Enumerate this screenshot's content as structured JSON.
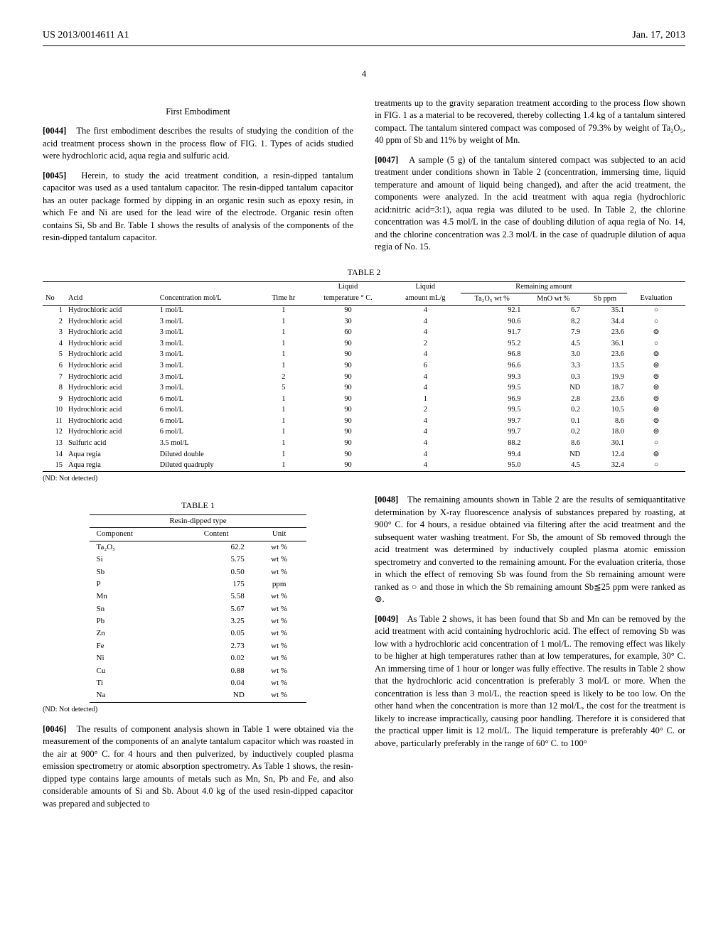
{
  "header": {
    "left": "US 2013/0014611 A1",
    "right": "Jan. 17, 2013",
    "page": "4"
  },
  "sectionTitle": "First Embodiment",
  "paragraphs": {
    "p44": "The first embodiment describes the results of studying the condition of the acid treatment process shown in the process flow of FIG. 1. Types of acids studied were hydrochloric acid, aqua regia and sulfuric acid.",
    "p45": "Herein, to study the acid treatment condition, a resin-dipped tantalum capacitor was used as a used tantalum capacitor. The resin-dipped tantalum capacitor has an outer package formed by dipping in an organic resin such as epoxy resin, in which Fe and Ni are used for the lead wire of the electrode. Organic resin often contains Si, Sb and Br. Table 1 shows the results of analysis of the components of the resin-dipped tantalum capacitor.",
    "p46_a": "treatments up to the gravity separation treatment according to the process flow shown in FIG. 1 as a material to be recovered, thereby collecting 1.4 kg of a tantalum sintered compact. The tantalum sintered compact was composed of 79.3% by weight of Ta₂O₅, 40 ppm of Sb and 11% by weight of Mn.",
    "p47": "A sample (5 g) of the tantalum sintered compact was subjected to an acid treatment under conditions shown in Table 2 (concentration, immersing time, liquid temperature and amount of liquid being changed), and after the acid treatment, the components were analyzed. In the acid treatment with aqua regia (hydrochloric acid:nitric acid=3:1), aqua regia was diluted to be used. In Table 2, the chlorine concentration was 4.5 mol/L in the case of doubling dilution of aqua regia of No. 14, and the chlorine concentration was 2.3 mol/L in the case of quadruple dilution of aqua regia of No. 15.",
    "p46_b": "The results of component analysis shown in Table 1 were obtained via the measurement of the components of an analyte tantalum capacitor which was roasted in the air at 900° C. for 4 hours and then pulverized, by inductively coupled plasma emission spectrometry or atomic absorption spectrometry. As Table 1 shows, the resin-dipped type contains large amounts of metals such as Mn, Sn, Pb and Fe, and also considerable amounts of Si and Sb. About 4.0 kg of the used resin-dipped capacitor was prepared and subjected to",
    "p48": "The remaining amounts shown in Table 2 are the results of semiquantitative determination by X-ray fluorescence analysis of substances prepared by roasting, at 900° C. for 4 hours, a residue obtained via filtering after the acid treatment and the subsequent water washing treatment. For Sb, the amount of Sb removed through the acid treatment was determined by inductively coupled plasma atomic emission spectrometry and converted to the remaining amount. For the evaluation criteria, those in which the effect of removing Sb was found from the Sb remaining amount were ranked as ○ and those in which the Sb remaining amount Sb≦25 ppm were ranked as ⊚.",
    "p49": "As Table 2 shows, it has been found that Sb and Mn can be removed by the acid treatment with acid containing hydrochloric acid. The effect of removing Sb was low with a hydrochloric acid concentration of 1 mol/L. The removing effect was likely to be higher at high temperatures rather than at low temperatures, for example, 30° C. An immersing time of 1 hour or longer was fully effective. The results in Table 2 show that the hydrochloric acid concentration is preferably 3 mol/L or more. When the concentration is less than 3 mol/L, the reaction speed is likely to be too low. On the other hand when the concentration is more than 12 mol/L, the cost for the treatment is likely to increase impractically, causing poor handling. Therefore it is considered that the practical upper limit is 12 mol/L. The liquid temperature is preferably 40° C. or above, particularly preferably in the range of 60° C. to 100°"
  },
  "table1": {
    "caption": "TABLE 1",
    "sub": "Resin-dipped type",
    "headers": [
      "Component",
      "Content",
      "Unit"
    ],
    "rows": [
      [
        "Ta₂O₅",
        "62.2",
        "wt %"
      ],
      [
        "Si",
        "5.75",
        "wt %"
      ],
      [
        "Sb",
        "0.50",
        "wt %"
      ],
      [
        "P",
        "175",
        "ppm"
      ],
      [
        "Mn",
        "5.58",
        "wt %"
      ],
      [
        "Sn",
        "5.67",
        "wt %"
      ],
      [
        "Pb",
        "3.25",
        "wt %"
      ],
      [
        "Zn",
        "0.05",
        "wt %"
      ],
      [
        "Fe",
        "2.73",
        "wt %"
      ],
      [
        "Ni",
        "0.02",
        "wt %"
      ],
      [
        "Cu",
        "0.88",
        "wt %"
      ],
      [
        "Ti",
        "0.04",
        "wt %"
      ],
      [
        "Na",
        "ND",
        "wt %"
      ]
    ],
    "note": "(ND: Not detected)"
  },
  "table2": {
    "caption": "TABLE 2",
    "groupHeaders": [
      "",
      "",
      "",
      "",
      "Liquid",
      "Liquid",
      "Remaining amount",
      "",
      "",
      ""
    ],
    "headers": [
      "No",
      "Acid",
      "Concentration mol/L",
      "Time hr",
      "temperature ° C.",
      "amount mL/g",
      "Ta₂O₅ wt %",
      "MnO wt %",
      "Sb ppm",
      "Evaluation"
    ],
    "rows": [
      [
        "1",
        "Hydrochloric acid",
        "1 mol/L",
        "1",
        "90",
        "4",
        "92.1",
        "6.7",
        "35.1",
        "○"
      ],
      [
        "2",
        "Hydrochloric acid",
        "3 mol/L",
        "1",
        "30",
        "4",
        "90.6",
        "8.2",
        "34.4",
        "○"
      ],
      [
        "3",
        "Hydrochloric acid",
        "3 mol/L",
        "1",
        "60",
        "4",
        "91.7",
        "7.9",
        "23.6",
        "⊚"
      ],
      [
        "4",
        "Hydrochloric acid",
        "3 mol/L",
        "1",
        "90",
        "2",
        "95.2",
        "4.5",
        "36.1",
        "○"
      ],
      [
        "5",
        "Hydrochloric acid",
        "3 mol/L",
        "1",
        "90",
        "4",
        "96.8",
        "3.0",
        "23.6",
        "⊚"
      ],
      [
        "6",
        "Hydrochloric acid",
        "3 mol/L",
        "1",
        "90",
        "6",
        "96.6",
        "3.3",
        "13.5",
        "⊚"
      ],
      [
        "7",
        "Hydrochloric acid",
        "3 mol/L",
        "2",
        "90",
        "4",
        "99.3",
        "0.3",
        "19.9",
        "⊚"
      ],
      [
        "8",
        "Hydrochloric acid",
        "3 mol/L",
        "5",
        "90",
        "4",
        "99.5",
        "ND",
        "18.7",
        "⊚"
      ],
      [
        "9",
        "Hydrochloric acid",
        "6 mol/L",
        "1",
        "90",
        "1",
        "96.9",
        "2.8",
        "23.6",
        "⊚"
      ],
      [
        "10",
        "Hydrochloric acid",
        "6 mol/L",
        "1",
        "90",
        "2",
        "99.5",
        "0.2",
        "10.5",
        "⊚"
      ],
      [
        "11",
        "Hydrochloric acid",
        "6 mol/L",
        "1",
        "90",
        "4",
        "99.7",
        "0.1",
        "8.6",
        "⊚"
      ],
      [
        "12",
        "Hydrochloric acid",
        "6 mol/L",
        "1",
        "90",
        "4",
        "99.7",
        "0.2",
        "18.0",
        "⊚"
      ],
      [
        "13",
        "Sulfuric acid",
        "3.5 mol/L",
        "1",
        "90",
        "4",
        "88.2",
        "8.6",
        "30.1",
        "○"
      ],
      [
        "14",
        "Aqua regia",
        "Diluted double",
        "1",
        "90",
        "4",
        "99.4",
        "ND",
        "12.4",
        "⊚"
      ],
      [
        "15",
        "Aqua regia",
        "Diluted quadruply",
        "1",
        "90",
        "4",
        "95.0",
        "4.5",
        "32.4",
        "○"
      ]
    ],
    "note": "(ND: Not detected)"
  },
  "labels": {
    "p44": "[0044]",
    "p45": "[0045]",
    "p46": "[0046]",
    "p47": "[0047]",
    "p48": "[0048]",
    "p49": "[0049]"
  }
}
